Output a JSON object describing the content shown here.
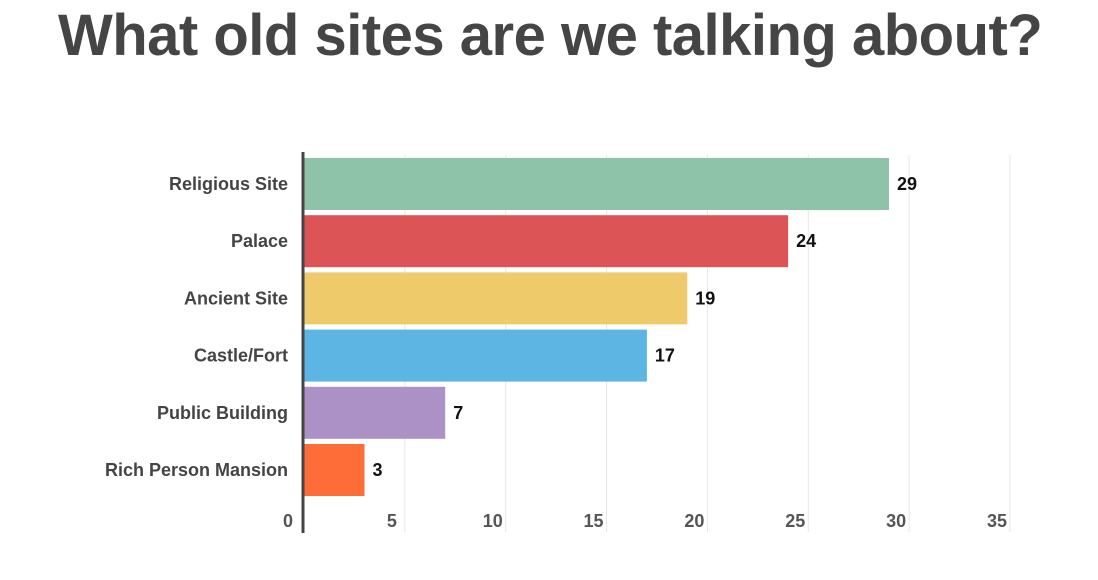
{
  "title": "What old sites are we talking about?",
  "chart_data": {
    "type": "bar",
    "orientation": "horizontal",
    "title": "What old sites are we talking about?",
    "categories": [
      "Religious Site",
      "Palace",
      "Ancient Site",
      "Castle/Fort",
      "Public Building",
      "Rich Person Mansion"
    ],
    "values": [
      29,
      24,
      19,
      17,
      7,
      3
    ],
    "colors": [
      "#8fc3a9",
      "#dc5456",
      "#eeca6a",
      "#5db5e4",
      "#ac91c7",
      "#fe6c37"
    ],
    "xlim": [
      0,
      35
    ],
    "xticks": [
      0,
      5,
      10,
      15,
      20,
      25,
      30,
      35
    ],
    "grid": true,
    "data_labels": true,
    "xlabel": "",
    "ylabel": ""
  }
}
